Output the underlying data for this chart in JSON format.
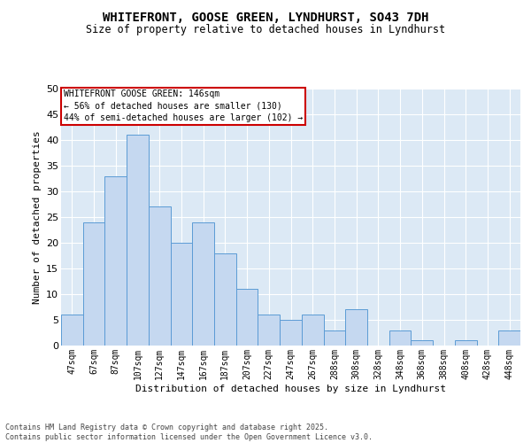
{
  "title_line1": "WHITEFRONT, GOOSE GREEN, LYNDHURST, SO43 7DH",
  "title_line2": "Size of property relative to detached houses in Lyndhurst",
  "xlabel": "Distribution of detached houses by size in Lyndhurst",
  "ylabel": "Number of detached properties",
  "categories": [
    "47sqm",
    "67sqm",
    "87sqm",
    "107sqm",
    "127sqm",
    "147sqm",
    "167sqm",
    "187sqm",
    "207sqm",
    "227sqm",
    "247sqm",
    "267sqm",
    "288sqm",
    "308sqm",
    "328sqm",
    "348sqm",
    "368sqm",
    "388sqm",
    "408sqm",
    "428sqm",
    "448sqm"
  ],
  "values": [
    6,
    24,
    33,
    41,
    27,
    20,
    24,
    18,
    11,
    6,
    5,
    6,
    3,
    7,
    0,
    3,
    1,
    0,
    1,
    0,
    3
  ],
  "bar_color": "#c5d8f0",
  "bar_edge_color": "#5b9bd5",
  "background_color": "#dce9f5",
  "ylim": [
    0,
    50
  ],
  "yticks": [
    0,
    5,
    10,
    15,
    20,
    25,
    30,
    35,
    40,
    45,
    50
  ],
  "annotation_box_text": "WHITEFRONT GOOSE GREEN: 146sqm\n← 56% of detached houses are smaller (130)\n44% of semi-detached houses are larger (102) →",
  "annotation_box_color": "#ffffff",
  "annotation_box_edge": "#cc0000",
  "footnote_line1": "Contains HM Land Registry data © Crown copyright and database right 2025.",
  "footnote_line2": "Contains public sector information licensed under the Open Government Licence v3.0."
}
